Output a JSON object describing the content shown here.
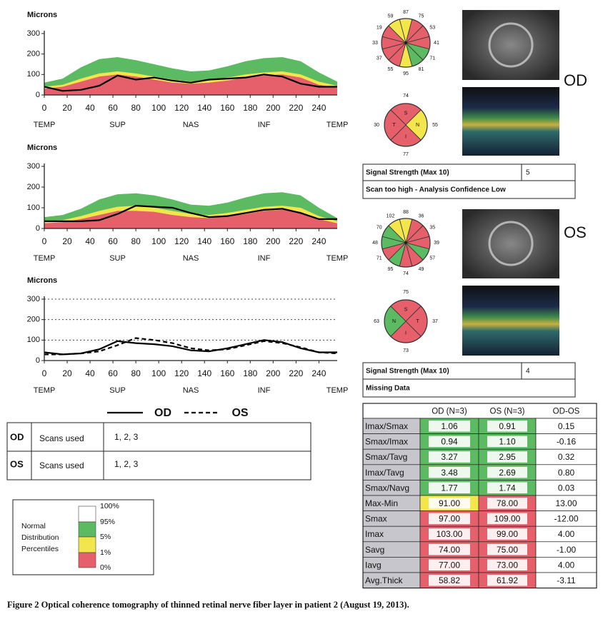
{
  "chart_data": [
    {
      "type": "line",
      "ylabel": "Microns",
      "x": [
        0,
        16,
        32,
        48,
        64,
        80,
        96,
        112,
        128,
        144,
        160,
        176,
        192,
        208,
        224,
        240,
        256
      ],
      "xlim": [
        0,
        256
      ],
      "xticks": [
        0,
        20,
        40,
        60,
        80,
        100,
        120,
        140,
        160,
        180,
        200,
        220,
        240
      ],
      "ylim": [
        0,
        300
      ],
      "yticks": [
        0,
        100,
        200,
        300
      ],
      "grid": false,
      "region_ticks": [
        {
          "value": 0,
          "label": "TEMP"
        },
        {
          "value": 64,
          "label": "SUP"
        },
        {
          "value": 128,
          "label": "NAS"
        },
        {
          "value": 192,
          "label": "INF"
        },
        {
          "value": 256,
          "label": "TEMP"
        }
      ],
      "series": [
        {
          "style": "area",
          "color": "#5cbb62",
          "values": [
            60,
            80,
            135,
            175,
            185,
            170,
            150,
            130,
            115,
            120,
            140,
            165,
            180,
            185,
            165,
            110,
            65
          ]
        },
        {
          "style": "area",
          "color": "#f3e64c",
          "values": [
            40,
            50,
            80,
            105,
            115,
            105,
            90,
            75,
            65,
            70,
            85,
            100,
            110,
            115,
            100,
            65,
            45
          ]
        },
        {
          "style": "area",
          "color": "#e5606a",
          "values": [
            30,
            40,
            65,
            90,
            100,
            90,
            75,
            60,
            55,
            60,
            70,
            85,
            95,
            100,
            85,
            50,
            35
          ]
        },
        {
          "style": "solid",
          "color": "#000000",
          "values": [
            40,
            20,
            25,
            45,
            95,
            75,
            85,
            70,
            60,
            75,
            80,
            85,
            100,
            90,
            55,
            40,
            40
          ]
        }
      ]
    },
    {
      "type": "line",
      "ylabel": "Microns",
      "x": [
        0,
        16,
        32,
        48,
        64,
        80,
        96,
        112,
        128,
        144,
        160,
        176,
        192,
        208,
        224,
        240,
        256
      ],
      "xlim": [
        0,
        256
      ],
      "xticks": [
        0,
        20,
        40,
        60,
        80,
        100,
        120,
        140,
        160,
        180,
        200,
        220,
        240
      ],
      "ylim": [
        0,
        300
      ],
      "yticks": [
        0,
        100,
        200,
        300
      ],
      "grid": false,
      "region_ticks": [
        {
          "value": 0,
          "label": "TEMP"
        },
        {
          "value": 64,
          "label": "SUP"
        },
        {
          "value": 128,
          "label": "NAS"
        },
        {
          "value": 192,
          "label": "INF"
        },
        {
          "value": 256,
          "label": "TEMP"
        }
      ],
      "series": [
        {
          "style": "area",
          "color": "#5cbb62",
          "values": [
            55,
            65,
            95,
            140,
            165,
            170,
            160,
            140,
            115,
            110,
            125,
            150,
            170,
            175,
            160,
            100,
            50
          ]
        },
        {
          "style": "area",
          "color": "#f3e64c",
          "values": [
            35,
            40,
            60,
            85,
            105,
            110,
            100,
            85,
            70,
            65,
            75,
            90,
            105,
            110,
            100,
            60,
            35
          ]
        },
        {
          "style": "area",
          "color": "#e5606a",
          "values": [
            25,
            30,
            45,
            65,
            85,
            85,
            80,
            65,
            55,
            50,
            60,
            70,
            85,
            90,
            80,
            45,
            25
          ]
        },
        {
          "style": "solid",
          "color": "#000000",
          "values": [
            35,
            35,
            35,
            40,
            70,
            110,
            105,
            100,
            75,
            55,
            60,
            75,
            90,
            95,
            75,
            45,
            45
          ]
        }
      ]
    },
    {
      "type": "line",
      "ylabel": "Microns",
      "x": [
        0,
        16,
        32,
        48,
        64,
        80,
        96,
        112,
        128,
        144,
        160,
        176,
        192,
        208,
        224,
        240,
        256
      ],
      "xlim": [
        0,
        256
      ],
      "xticks": [
        0,
        20,
        40,
        60,
        80,
        100,
        120,
        140,
        160,
        180,
        200,
        220,
        240
      ],
      "ylim": [
        0,
        300
      ],
      "yticks": [
        0,
        100,
        200,
        300
      ],
      "grid": true,
      "region_ticks": [
        {
          "value": 0,
          "label": "TEMP"
        },
        {
          "value": 64,
          "label": "SUP"
        },
        {
          "value": 128,
          "label": "NAS"
        },
        {
          "value": 192,
          "label": "INF"
        },
        {
          "value": 256,
          "label": "TEMP"
        }
      ],
      "series": [
        {
          "name": "OD",
          "style": "solid",
          "color": "#000000",
          "values": [
            40,
            30,
            35,
            55,
            95,
            85,
            80,
            70,
            50,
            45,
            60,
            80,
            100,
            90,
            60,
            40,
            40
          ]
        },
        {
          "name": "OS",
          "style": "dashed",
          "color": "#000000",
          "values": [
            30,
            30,
            35,
            45,
            75,
            110,
            100,
            85,
            60,
            50,
            55,
            75,
            95,
            85,
            65,
            40,
            35
          ]
        }
      ]
    }
  ],
  "sector_diagrams": [
    {
      "values": [
        87,
        75,
        53,
        41,
        71,
        81,
        95,
        55,
        37,
        33,
        19,
        59
      ],
      "colors": [
        "#f3e64c",
        "#e5606a",
        "#e5606a",
        "#e5606a",
        "#5cbb62",
        "#5cbb62",
        "#f3e64c",
        "#e5606a",
        "#e5606a",
        "#e5606a",
        "#e5606a",
        "#f3e64c"
      ]
    },
    {
      "values": [
        74,
        55,
        77,
        30
      ],
      "letters": [
        "S",
        "N",
        "I",
        "T"
      ],
      "colors": [
        "#e5606a",
        "#f3e64c",
        "#e5606a",
        "#e5606a"
      ]
    },
    {
      "values": [
        88,
        36,
        35,
        39,
        57,
        49,
        74,
        95,
        71,
        48,
        70,
        102
      ],
      "colors": [
        "#f3e64c",
        "#e5606a",
        "#e5606a",
        "#e5606a",
        "#5cbb62",
        "#e5606a",
        "#e5606a",
        "#5cbb62",
        "#e5606a",
        "#5cbb62",
        "#5cbb62",
        "#f3e64c"
      ]
    },
    {
      "values": [
        75,
        37,
        73,
        63
      ],
      "letters": [
        "S",
        "T",
        "I",
        "N"
      ],
      "colors": [
        "#e5606a",
        "#e5606a",
        "#e5606a",
        "#5cbb62"
      ]
    }
  ],
  "eyes": [
    "OD",
    "OS"
  ],
  "signal": [
    {
      "label": "Signal Strength (Max 10)",
      "value": "5",
      "note": "Scan too high - Analysis Confidence Low"
    },
    {
      "label": "Signal Strength (Max 10)",
      "value": "4",
      "note": "Missing Data"
    }
  ],
  "scans": [
    {
      "eye": "OD",
      "label": "Scans used",
      "value": "1, 2, 3"
    },
    {
      "eye": "OS",
      "label": "Scans used",
      "value": "1, 2, 3"
    }
  ],
  "percentile_legend": {
    "title": [
      "Normal",
      "Distribution",
      "Percentiles"
    ],
    "levels": [
      "100%",
      "95%",
      "5%",
      "1%",
      "0%"
    ],
    "colors": [
      "#ffffff",
      "#5cbb62",
      "#f3e64c",
      "#e5606a"
    ]
  },
  "table": {
    "header": [
      "OD (N=3)",
      "OS (N=3)",
      "OD-OS"
    ],
    "rows": [
      {
        "cells": [
          "Imax/Smax",
          "1.06",
          "0.91",
          "0.15"
        ],
        "colors": [
          "#5cbb62",
          "#5cbb62"
        ]
      },
      {
        "cells": [
          "Smax/Imax",
          "0.94",
          "1.10",
          "-0.16"
        ],
        "colors": [
          "#5cbb62",
          "#5cbb62"
        ]
      },
      {
        "cells": [
          "Smax/Tavg",
          "3.27",
          "2.95",
          "0.32"
        ],
        "colors": [
          "#5cbb62",
          "#5cbb62"
        ]
      },
      {
        "cells": [
          "Imax/Tavg",
          "3.48",
          "2.69",
          "0.80"
        ],
        "colors": [
          "#5cbb62",
          "#5cbb62"
        ]
      },
      {
        "cells": [
          "Smax/Navg",
          "1.77",
          "1.74",
          "0.03"
        ],
        "colors": [
          "#5cbb62",
          "#5cbb62"
        ]
      },
      {
        "cells": [
          "Max-Min",
          "91.00",
          "78.00",
          "13.00"
        ],
        "colors": [
          "#f3e64c",
          "#e5606a"
        ]
      },
      {
        "cells": [
          "Smax",
          "97.00",
          "109.00",
          "-12.00"
        ],
        "colors": [
          "#e5606a",
          "#e5606a"
        ]
      },
      {
        "cells": [
          "Imax",
          "103.00",
          "99.00",
          "4.00"
        ],
        "colors": [
          "#e5606a",
          "#e5606a"
        ]
      },
      {
        "cells": [
          "Savg",
          "74.00",
          "75.00",
          "-1.00"
        ],
        "colors": [
          "#e5606a",
          "#e5606a"
        ]
      },
      {
        "cells": [
          "Iavg",
          "77.00",
          "73.00",
          "4.00"
        ],
        "colors": [
          "#e5606a",
          "#e5606a"
        ]
      },
      {
        "cells": [
          "Avg.Thick",
          "58.82",
          "61.92",
          "-3.11"
        ],
        "colors": [
          "#e5606a",
          "#e5606a"
        ]
      }
    ]
  },
  "caption": "Figure 2 Optical coherence tomography of thinned retinal nerve fiber layer in patient 2 (August 19, 2013)."
}
